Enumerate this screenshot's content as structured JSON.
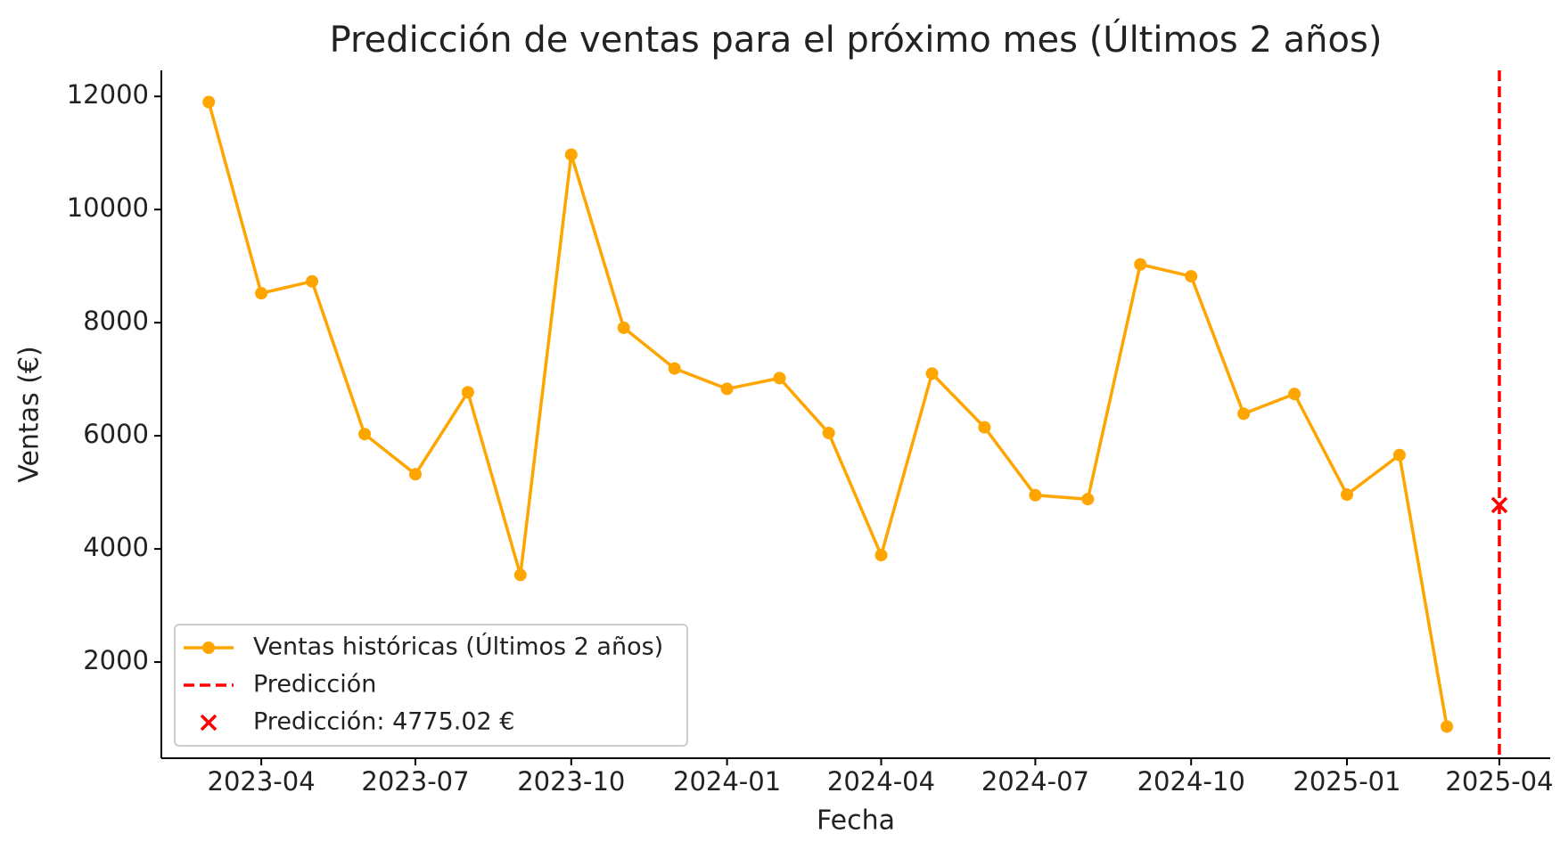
{
  "chart_data": {
    "type": "line",
    "title": "Predicción de ventas para el próximo mes (Últimos 2 años)",
    "x_label": "Fecha",
    "y_label": "Ventas (€)",
    "x": [
      "2023-03",
      "2023-04",
      "2023-05",
      "2023-06",
      "2023-07",
      "2023-08",
      "2023-09",
      "2023-10",
      "2023-11",
      "2023-12",
      "2024-01",
      "2024-02",
      "2024-03",
      "2024-04",
      "2024-05",
      "2024-06",
      "2024-07",
      "2024-08",
      "2024-09",
      "2024-10",
      "2024-11",
      "2024-12",
      "2025-01",
      "2025-02",
      "2025-03"
    ],
    "series": [
      {
        "name": "Ventas históricas (Últimos 2 años)",
        "color": "#ffa500",
        "values": [
          11900,
          8520,
          8730,
          6030,
          5320,
          6770,
          3540,
          10970,
          7910,
          7190,
          6830,
          7020,
          6050,
          3890,
          7100,
          6150,
          4950,
          4880,
          9030,
          8820,
          6390,
          6740,
          4960,
          5660,
          860
        ]
      }
    ],
    "prediction": {
      "x": "2025-04",
      "value": 4775.02,
      "line_name": "Predicción",
      "label": "Predicción: 4775.02 €",
      "color": "#ff0000"
    },
    "xlim": [
      "2023-02",
      "2025-05"
    ],
    "xticks": [
      "2023-04",
      "2023-07",
      "2023-10",
      "2024-01",
      "2024-04",
      "2024-07",
      "2024-10",
      "2025-01",
      "2025-04"
    ],
    "ylim": [
      300,
      12460
    ],
    "yticks": [
      2000,
      4000,
      6000,
      8000,
      10000,
      12000
    ],
    "grid": false,
    "legend": "lower left"
  }
}
